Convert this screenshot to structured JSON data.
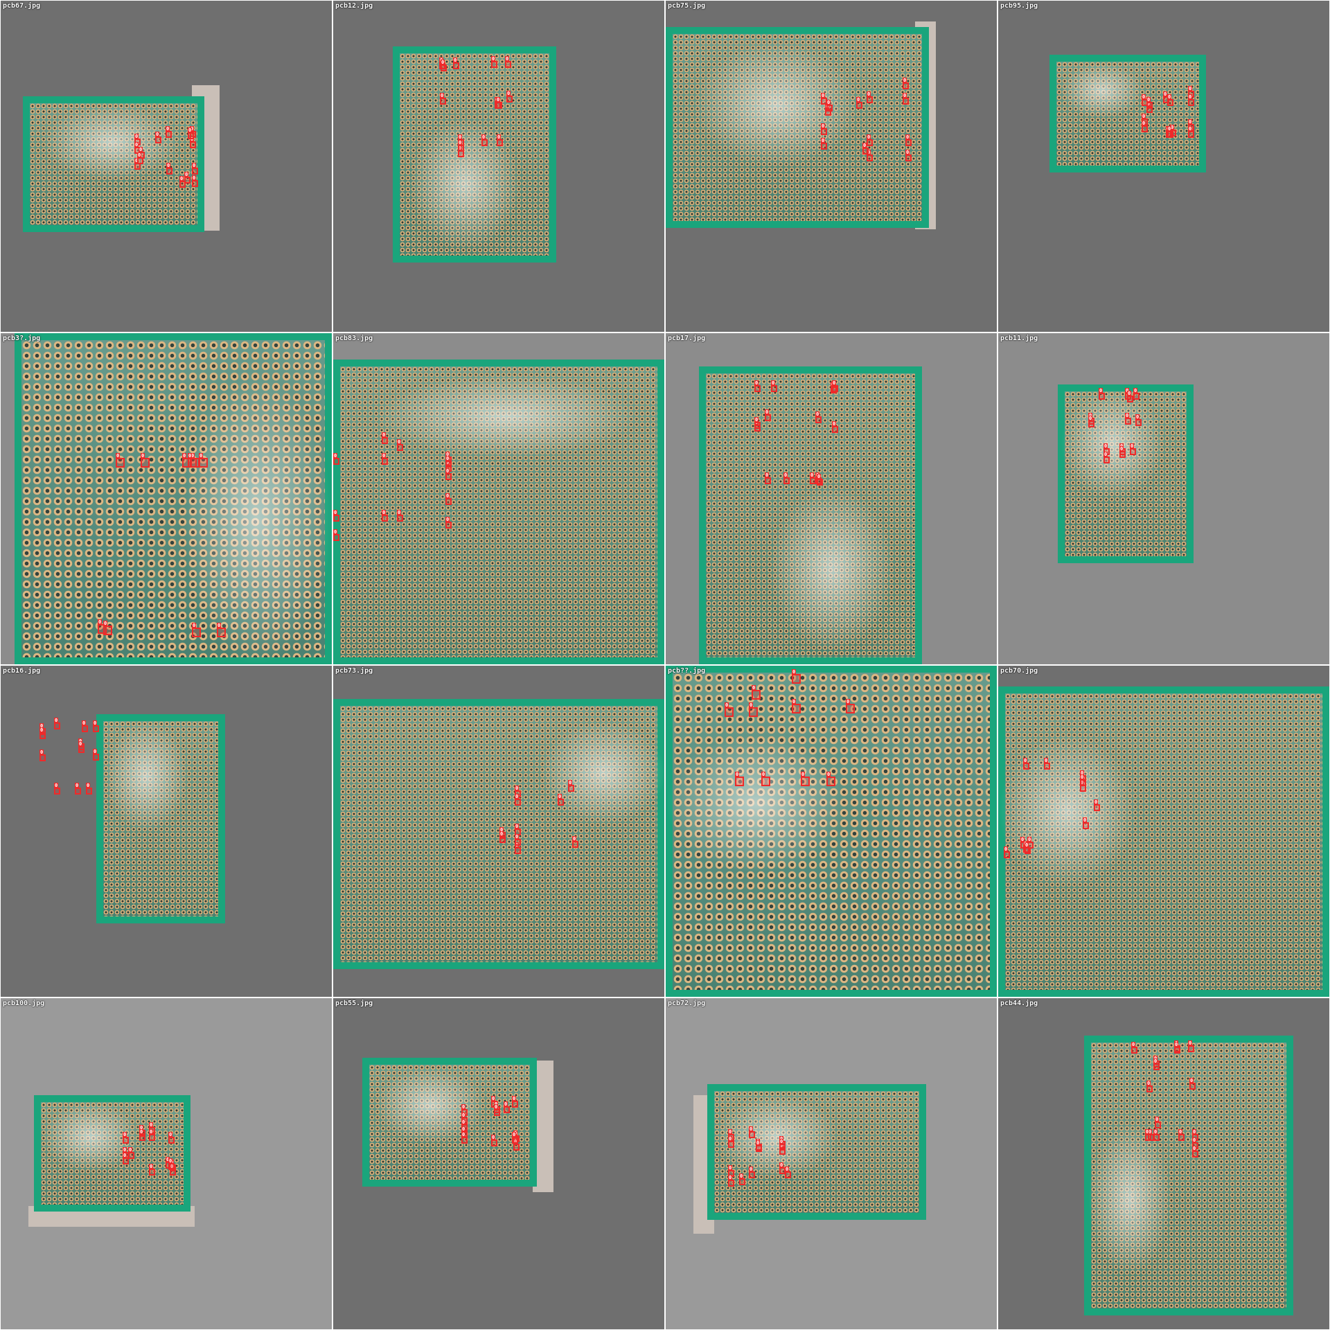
{
  "tiles": [
    {
      "filename": "pcb67.jpg",
      "bg": "#6f6f6f",
      "closeup": false,
      "detections": 15
    },
    {
      "filename": "pcb12.jpg",
      "bg": "#6f6f6f",
      "closeup": false,
      "detections": 14
    },
    {
      "filename": "pcb75.jpg",
      "bg": "#6f6f6f",
      "closeup": false,
      "detections": 14
    },
    {
      "filename": "pcb95.jpg",
      "bg": "#6f6f6f",
      "closeup": false,
      "detections": 14
    },
    {
      "filename": "pcb3?.jpg",
      "bg": "#8c8c8c",
      "closeup": true,
      "detections": 9
    },
    {
      "filename": "pcb83.jpg",
      "bg": "#8c8c8c",
      "closeup": false,
      "detections": 14
    },
    {
      "filename": "pcb17.jpg",
      "bg": "#8c8c8c",
      "closeup": false,
      "detections": 14
    },
    {
      "filename": "pcb11.jpg",
      "bg": "#8c8c8c",
      "closeup": false,
      "detections": 13
    },
    {
      "filename": "pcb16.jpg",
      "bg": "#6f6f6f",
      "closeup": false,
      "detections": 12
    },
    {
      "filename": "pcb73.jpg",
      "bg": "#6f6f6f",
      "closeup": false,
      "detections": 10
    },
    {
      "filename": "pcb??.jpg",
      "bg": "#6f6f6f",
      "closeup": true,
      "detections": 10
    },
    {
      "filename": "pcb70.jpg",
      "bg": "#6f6f6f",
      "closeup": false,
      "detections": 12
    },
    {
      "filename": "pcb100.jpg",
      "bg": "#9a9a9a",
      "closeup": false,
      "detections": 14
    },
    {
      "filename": "pcb55.jpg",
      "bg": "#6f6f6f",
      "closeup": false,
      "detections": 14
    },
    {
      "filename": "pcb72.jpg",
      "bg": "#9a9a9a",
      "closeup": false,
      "detections": 14
    },
    {
      "filename": "pcb44.jpg",
      "bg": "#6f6f6f",
      "closeup": false,
      "detections": 16
    }
  ],
  "detection_label": "0",
  "colors": {
    "box": "#ee2a2a",
    "board_mask": "#1aa57c",
    "background_dark": "#6f6f6f",
    "background_light": "#9a9a9a"
  }
}
